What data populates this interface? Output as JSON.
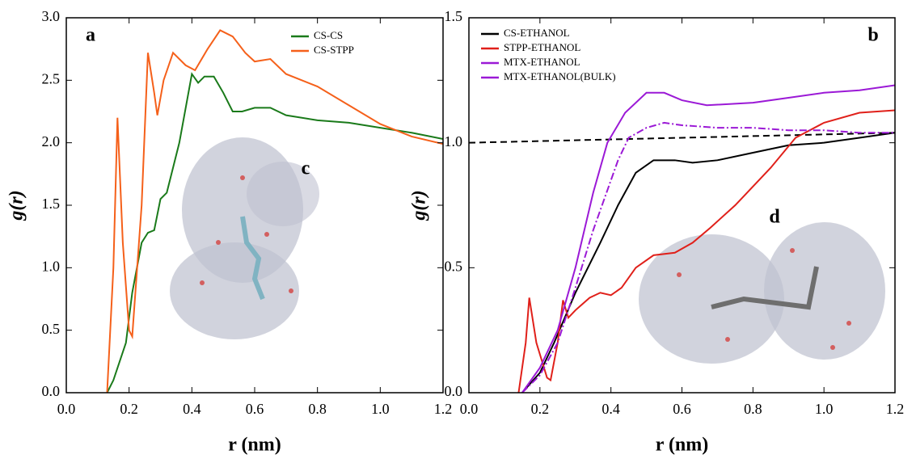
{
  "chart_data": [
    {
      "type": "line",
      "xlabel": "r (nm)",
      "ylabel": "g(r)",
      "annotations": [
        "a",
        "c"
      ],
      "xlim": [
        0,
        1.2
      ],
      "ylim": [
        0,
        3.0
      ],
      "xticks": [
        {
          "value": 0,
          "label": "0.0"
        },
        {
          "value": 0.2,
          "label": "0.2"
        },
        {
          "value": 0.4,
          "label": "0.4"
        },
        {
          "value": 0.6,
          "label": "0.6"
        },
        {
          "value": 0.8,
          "label": "0.8"
        },
        {
          "value": 1.0,
          "label": "1.0"
        },
        {
          "value": 1.2,
          "label": "1.2"
        }
      ],
      "yticks": [
        {
          "value": 0,
          "label": "0.0"
        },
        {
          "value": 0.5,
          "label": "0.5"
        },
        {
          "value": 1.0,
          "label": "1.0"
        },
        {
          "value": 1.5,
          "label": "1.5"
        },
        {
          "value": 2.0,
          "label": "2.0"
        },
        {
          "value": 2.5,
          "label": "2.5"
        },
        {
          "value": 3.0,
          "label": "3.0"
        }
      ],
      "legend": "upper right",
      "series": [
        {
          "name": "CS-CS",
          "color": "#1a7a1a",
          "dash": "solid",
          "x": [
            0.13,
            0.15,
            0.19,
            0.21,
            0.24,
            0.26,
            0.28,
            0.3,
            0.32,
            0.36,
            0.4,
            0.42,
            0.44,
            0.47,
            0.5,
            0.53,
            0.56,
            0.6,
            0.65,
            0.7,
            0.8,
            0.9,
            1.0,
            1.1,
            1.2
          ],
          "values": [
            0,
            0.1,
            0.4,
            0.8,
            1.2,
            1.28,
            1.3,
            1.55,
            1.6,
            2.0,
            2.55,
            2.48,
            2.53,
            2.53,
            2.4,
            2.25,
            2.25,
            2.28,
            2.28,
            2.22,
            2.18,
            2.16,
            2.12,
            2.08,
            2.03
          ]
        },
        {
          "name": "CS-STPP",
          "color": "#f5601a",
          "dash": "solid",
          "x": [
            0.13,
            0.15,
            0.163,
            0.18,
            0.2,
            0.21,
            0.24,
            0.26,
            0.28,
            0.29,
            0.31,
            0.34,
            0.38,
            0.41,
            0.45,
            0.49,
            0.53,
            0.57,
            0.6,
            0.65,
            0.7,
            0.8,
            0.9,
            1.0,
            1.1,
            1.2
          ],
          "values": [
            0,
            1.0,
            2.2,
            1.2,
            0.5,
            0.45,
            1.5,
            2.72,
            2.4,
            2.22,
            2.5,
            2.72,
            2.62,
            2.58,
            2.75,
            2.9,
            2.85,
            2.72,
            2.65,
            2.67,
            2.55,
            2.45,
            2.3,
            2.15,
            2.05,
            1.99
          ]
        }
      ]
    },
    {
      "type": "line",
      "xlabel": "r (nm)",
      "ylabel": "g(r)",
      "annotations": [
        "b",
        "d"
      ],
      "xlim": [
        0,
        1.2
      ],
      "ylim": [
        0,
        1.5
      ],
      "xticks": [
        {
          "value": 0,
          "label": "0.0"
        },
        {
          "value": 0.2,
          "label": "0.2"
        },
        {
          "value": 0.4,
          "label": "0.4"
        },
        {
          "value": 0.6,
          "label": "0.6"
        },
        {
          "value": 0.8,
          "label": "0.8"
        },
        {
          "value": 1.0,
          "label": "1.0"
        },
        {
          "value": 1.2,
          "label": "1.2"
        }
      ],
      "yticks": [
        {
          "value": 0,
          "label": "0.0"
        },
        {
          "value": 0.5,
          "label": "0.5"
        },
        {
          "value": 1.0,
          "label": "1.0"
        },
        {
          "value": 1.5,
          "label": "1.5"
        }
      ],
      "legend": "upper left",
      "reference_line": {
        "color": "#000000",
        "dash": "dashed",
        "x": [
          0,
          1.2
        ],
        "values": [
          1.0,
          1.04
        ]
      },
      "series": [
        {
          "name": "CS-ETHANOL",
          "color": "#000000",
          "dash": "solid",
          "x": [
            0.15,
            0.2,
            0.24,
            0.3,
            0.37,
            0.42,
            0.47,
            0.52,
            0.58,
            0.63,
            0.7,
            0.8,
            0.9,
            1.0,
            1.1,
            1.2
          ],
          "values": [
            0,
            0.08,
            0.2,
            0.4,
            0.6,
            0.75,
            0.88,
            0.93,
            0.93,
            0.92,
            0.93,
            0.96,
            0.99,
            1.0,
            1.02,
            1.04
          ]
        },
        {
          "name": "STPP-ETHANOL",
          "color": "#e0201a",
          "dash": "solid",
          "x": [
            0.14,
            0.16,
            0.17,
            0.19,
            0.22,
            0.23,
            0.25,
            0.265,
            0.28,
            0.3,
            0.34,
            0.37,
            0.4,
            0.43,
            0.47,
            0.52,
            0.58,
            0.63,
            0.68,
            0.75,
            0.85,
            0.92,
            1.0,
            1.1,
            1.2
          ],
          "values": [
            0,
            0.2,
            0.38,
            0.2,
            0.06,
            0.05,
            0.2,
            0.37,
            0.3,
            0.33,
            0.38,
            0.4,
            0.39,
            0.42,
            0.5,
            0.55,
            0.56,
            0.6,
            0.66,
            0.75,
            0.9,
            1.02,
            1.08,
            1.12,
            1.13
          ]
        },
        {
          "name": "MTX-ETHANOL",
          "color": "#9b19d6",
          "dash": "solid",
          "x": [
            0.15,
            0.2,
            0.25,
            0.3,
            0.35,
            0.39,
            0.44,
            0.5,
            0.55,
            0.6,
            0.67,
            0.8,
            0.9,
            1.0,
            1.1,
            1.2
          ],
          "values": [
            0,
            0.1,
            0.25,
            0.5,
            0.8,
            1.0,
            1.12,
            1.2,
            1.2,
            1.17,
            1.15,
            1.16,
            1.18,
            1.2,
            1.21,
            1.23
          ]
        },
        {
          "name": "MTX-ETHANOL(BULK)",
          "color": "#9b19d6",
          "dash": "dashdot",
          "x": [
            0.15,
            0.2,
            0.25,
            0.3,
            0.35,
            0.4,
            0.42,
            0.45,
            0.5,
            0.55,
            0.6,
            0.7,
            0.8,
            0.9,
            1.0,
            1.1,
            1.2
          ],
          "values": [
            0,
            0.07,
            0.2,
            0.42,
            0.65,
            0.85,
            0.93,
            1.02,
            1.06,
            1.08,
            1.07,
            1.06,
            1.06,
            1.05,
            1.05,
            1.04,
            1.04
          ]
        }
      ]
    }
  ]
}
